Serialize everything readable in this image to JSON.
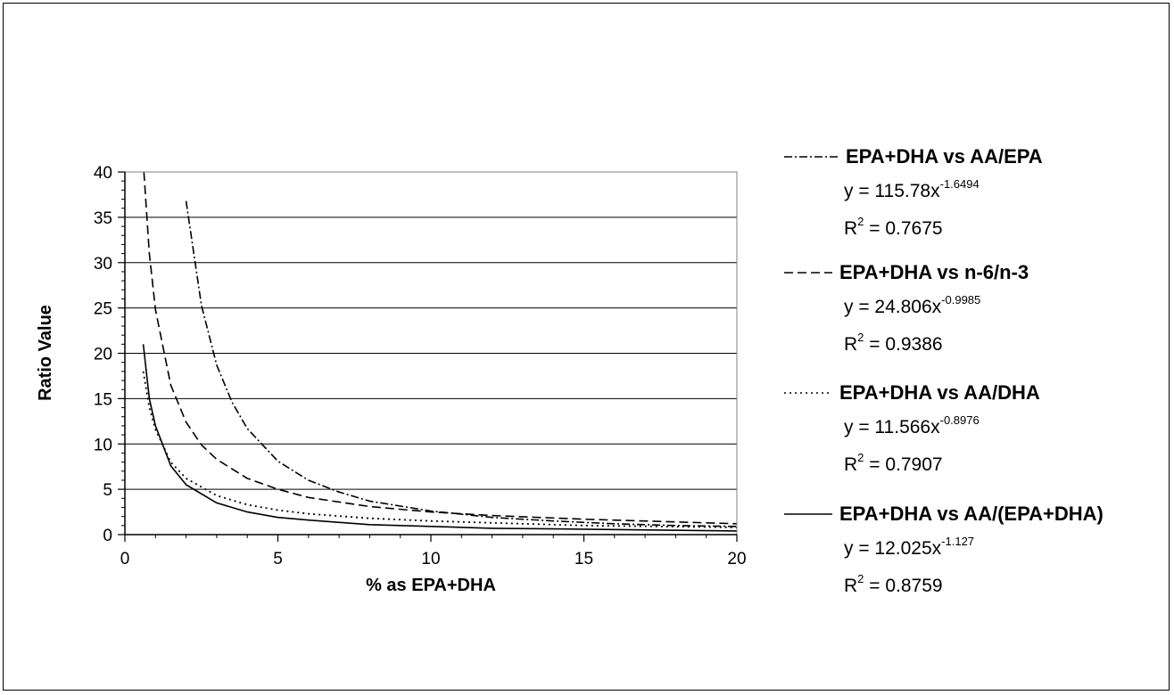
{
  "chart_data": {
    "type": "line",
    "xlabel": "% as EPA+DHA",
    "ylabel": "Ratio Value",
    "xlim": [
      0,
      20
    ],
    "ylim": [
      0,
      40
    ],
    "x_ticks": [
      "0",
      "5",
      "10",
      "15",
      "20"
    ],
    "y_ticks": [
      "0",
      "5",
      "10",
      "15",
      "20",
      "25",
      "30",
      "35",
      "40"
    ],
    "grid": "horizontal major gridlines",
    "legend_position": "right",
    "series": [
      {
        "name": "EPA+DHA vs AA/EPA",
        "line_style": "dash-dot",
        "equation": "y = 115.78x",
        "exponent": "-1.6494",
        "r2_label": "R",
        "r2_sup": "2",
        "r2_value": " = 0.7675",
        "fit": {
          "a": 115.78,
          "b": -1.6494
        },
        "x": [
          2.0,
          2.5,
          3,
          3.5,
          4,
          5,
          6,
          7,
          8,
          10,
          12,
          14,
          16,
          18,
          20
        ],
        "y": [
          36.8,
          25.3,
          18.7,
          14.6,
          11.7,
          8.1,
          6.0,
          4.7,
          3.7,
          2.6,
          1.9,
          1.5,
          1.2,
          1.0,
          0.9
        ]
      },
      {
        "name": "EPA+DHA vs n-6/n-3",
        "line_style": "dash",
        "equation": "y = 24.806x",
        "exponent": "-0.9985",
        "r2_label": "R",
        "r2_sup": "2",
        "r2_value": " = 0.9386",
        "fit": {
          "a": 24.806,
          "b": -0.9985
        },
        "x": [
          0.62,
          0.8,
          1.0,
          1.5,
          2,
          2.5,
          3,
          4,
          5,
          6,
          8,
          10,
          12,
          15,
          20
        ],
        "y": [
          40.0,
          31.0,
          24.8,
          16.5,
          12.4,
          9.9,
          8.3,
          6.2,
          5.0,
          4.1,
          3.1,
          2.5,
          2.1,
          1.7,
          1.2
        ]
      },
      {
        "name": "EPA+DHA vs AA/DHA",
        "line_style": "dot",
        "equation": "y = 11.566x",
        "exponent": "-0.8976",
        "r2_label": "R",
        "r2_sup": "2",
        "r2_value": " = 0.7907",
        "fit": {
          "a": 11.566,
          "b": -0.8976
        },
        "x": [
          0.6,
          0.8,
          1.0,
          1.5,
          2,
          3,
          4,
          5,
          6,
          8,
          10,
          12,
          15,
          20
        ],
        "y": [
          18.0,
          14.0,
          11.6,
          8.0,
          6.2,
          4.3,
          3.3,
          2.7,
          2.3,
          1.8,
          1.5,
          1.3,
          1.0,
          0.8
        ]
      },
      {
        "name": "EPA+DHA vs AA/(EPA+DHA)",
        "line_style": "solid",
        "equation": "y = 12.025x",
        "exponent": "-1.127",
        "r2_label": "R",
        "r2_sup": "2",
        "r2_value": " = 0.8759",
        "fit": {
          "a": 12.025,
          "b": -1.127
        },
        "x": [
          0.6,
          0.8,
          1.0,
          1.5,
          2,
          3,
          4,
          5,
          6,
          8,
          10,
          12,
          15,
          20
        ],
        "y": [
          21.0,
          15.0,
          12.0,
          7.6,
          5.5,
          3.5,
          2.5,
          1.9,
          1.6,
          1.1,
          0.9,
          0.7,
          0.6,
          0.4
        ]
      }
    ]
  }
}
